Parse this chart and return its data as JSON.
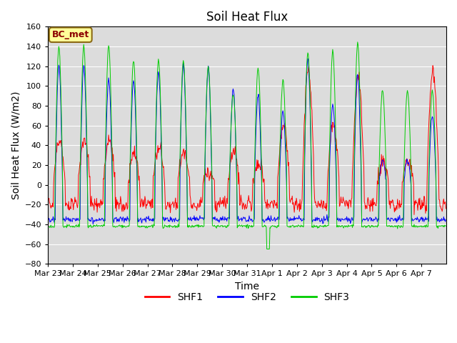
{
  "title": "Soil Heat Flux",
  "ylabel": "Soil Heat Flux (W/m2)",
  "xlabel": "Time",
  "ylim": [
    -80,
    160
  ],
  "yticks": [
    -80,
    -60,
    -40,
    -20,
    0,
    20,
    40,
    60,
    80,
    100,
    120,
    140,
    160
  ],
  "xtick_labels": [
    "Mar 23",
    "Mar 24",
    "Mar 25",
    "Mar 26",
    "Mar 27",
    "Mar 28",
    "Mar 29",
    "Mar 30",
    "Mar 31",
    "Apr 1",
    "Apr 2",
    "Apr 3",
    "Apr 4",
    "Apr 5",
    "Apr 6",
    "Apr 7"
  ],
  "legend_label": "BC_met",
  "series_labels": [
    "SHF1",
    "SHF2",
    "SHF3"
  ],
  "series_colors": [
    "#ff0000",
    "#0000ff",
    "#00cc00"
  ],
  "background_color": "#dcdcdc",
  "title_fontsize": 12,
  "axis_label_fontsize": 10,
  "tick_fontsize": 8,
  "legend_fontsize": 10,
  "shf1_amplitudes": [
    45,
    45,
    45,
    32,
    38,
    33,
    13,
    33,
    20,
    60,
    115,
    60,
    110,
    25,
    25,
    115
  ],
  "shf2_amplitudes": [
    120,
    120,
    107,
    107,
    115,
    122,
    118,
    97,
    90,
    75,
    128,
    80,
    112,
    25,
    25,
    70
  ],
  "shf3_amplitudes": [
    139,
    139,
    141,
    125,
    126,
    125,
    120,
    92,
    118,
    106,
    134,
    135,
    144,
    95,
    95,
    95
  ]
}
